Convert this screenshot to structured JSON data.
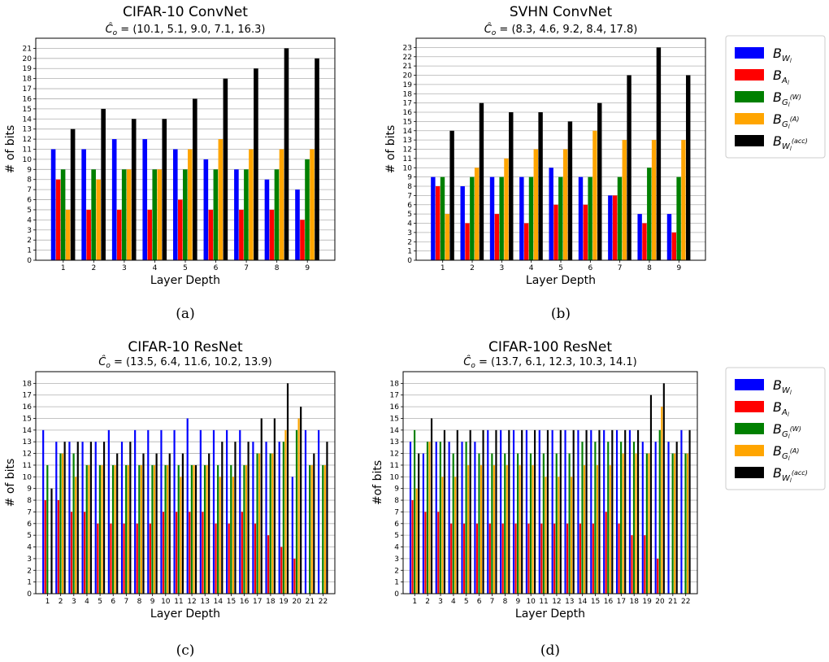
{
  "colors": {
    "bw": "#0000ff",
    "ba": "#ff0000",
    "bgw": "#008000",
    "bga": "#ffa500",
    "bwacc": "#000000",
    "grid": "#b0b0b0"
  },
  "legend": {
    "entries": [
      {
        "key": "bw",
        "base": "B",
        "sub": "W",
        "subsub": "l",
        "sup": ""
      },
      {
        "key": "ba",
        "base": "B",
        "sub": "A",
        "subsub": "l",
        "sup": ""
      },
      {
        "key": "bgw",
        "base": "B",
        "sub": "G",
        "subsub": "l",
        "sup": "(W)"
      },
      {
        "key": "bga",
        "base": "B",
        "sub": "G",
        "subsub": "l",
        "sup": "(A)"
      },
      {
        "key": "bwacc",
        "base": "B",
        "sub": "W",
        "subsub": "l",
        "sup": "(acc)"
      }
    ]
  },
  "chart_data": [
    {
      "type": "bar",
      "title": "CIFAR-10 ConvNet",
      "subtitle": "(10.1, 5.1, 9.0, 7.1, 16.3)",
      "xlabel": "Layer Depth",
      "ylabel": "# of bits",
      "caption": "(a)",
      "ylim": [
        0,
        22
      ],
      "ytick_max": 21,
      "grid": true,
      "categories": [
        "1",
        "2",
        "3",
        "4",
        "5",
        "6",
        "7",
        "8",
        "9"
      ],
      "series": [
        {
          "key": "bw",
          "values": [
            11,
            11,
            12,
            12,
            11,
            10,
            9,
            8,
            7
          ]
        },
        {
          "key": "ba",
          "values": [
            8,
            5,
            5,
            5,
            6,
            5,
            5,
            5,
            4
          ]
        },
        {
          "key": "bgw",
          "values": [
            9,
            9,
            9,
            9,
            9,
            9,
            9,
            9,
            10
          ]
        },
        {
          "key": "bga",
          "values": [
            5,
            8,
            9,
            9,
            11,
            12,
            11,
            11,
            11
          ]
        },
        {
          "key": "bwacc",
          "values": [
            13,
            15,
            14,
            14,
            16,
            18,
            19,
            21,
            20
          ]
        }
      ]
    },
    {
      "type": "bar",
      "title": "SVHN ConvNet",
      "subtitle": "(8.3, 4.6, 9.2, 8.4, 17.8)",
      "xlabel": "Layer Depth",
      "ylabel": "# of bits",
      "caption": "(b)",
      "ylim": [
        0,
        24
      ],
      "ytick_max": 23,
      "grid": true,
      "categories": [
        "1",
        "2",
        "3",
        "4",
        "5",
        "6",
        "7",
        "8",
        "9"
      ],
      "series": [
        {
          "key": "bw",
          "values": [
            9,
            8,
            9,
            9,
            10,
            9,
            7,
            5,
            5
          ]
        },
        {
          "key": "ba",
          "values": [
            8,
            4,
            5,
            4,
            6,
            6,
            7,
            4,
            3
          ]
        },
        {
          "key": "bgw",
          "values": [
            9,
            9,
            9,
            9,
            9,
            9,
            9,
            10,
            9
          ]
        },
        {
          "key": "bga",
          "values": [
            5,
            10,
            11,
            12,
            12,
            14,
            13,
            13,
            13
          ]
        },
        {
          "key": "bwacc",
          "values": [
            14,
            17,
            16,
            16,
            15,
            17,
            20,
            23,
            20
          ]
        }
      ]
    },
    {
      "type": "bar",
      "title": "CIFAR-10 ResNet",
      "subtitle": "(13.5, 6.4, 11.6, 10.2, 13.9)",
      "xlabel": "Layer Depth",
      "ylabel": "# of bits",
      "caption": "(c)",
      "ylim": [
        0,
        19
      ],
      "ytick_max": 18,
      "grid": true,
      "categories": [
        "1",
        "2",
        "3",
        "4",
        "5",
        "6",
        "7",
        "8",
        "9",
        "10",
        "11",
        "12",
        "13",
        "14",
        "15",
        "16",
        "17",
        "18",
        "19",
        "20",
        "21",
        "22"
      ],
      "series": [
        {
          "key": "bw",
          "values": [
            14,
            13,
            13,
            13,
            13,
            14,
            13,
            14,
            14,
            14,
            14,
            15,
            14,
            14,
            14,
            14,
            13,
            13,
            13,
            10,
            14,
            14
          ]
        },
        {
          "key": "ba",
          "values": [
            8,
            8,
            7,
            7,
            6,
            6,
            6,
            6,
            6,
            7,
            7,
            7,
            7,
            6,
            6,
            7,
            6,
            5,
            4,
            3,
            0,
            0
          ]
        },
        {
          "key": "bgw",
          "values": [
            11,
            12,
            12,
            11,
            11,
            11,
            11,
            11,
            11,
            11,
            11,
            11,
            11,
            11,
            11,
            11,
            12,
            12,
            13,
            14,
            11,
            11
          ]
        },
        {
          "key": "bga",
          "values": [
            0,
            12,
            10,
            11,
            11,
            11,
            11,
            11,
            11,
            11,
            10,
            11,
            11,
            10,
            10,
            11,
            12,
            12,
            14,
            15,
            11,
            11
          ]
        },
        {
          "key": "bwacc",
          "values": [
            9,
            13,
            13,
            13,
            13,
            12,
            13,
            12,
            12,
            12,
            12,
            11,
            12,
            13,
            13,
            13,
            15,
            15,
            18,
            16,
            12,
            13
          ]
        }
      ]
    },
    {
      "type": "bar",
      "title": "CIFAR-100 ResNet",
      "subtitle": "(13.7, 6.1, 12.3, 10.3, 14.1)",
      "xlabel": "Layer Depth",
      "ylabel": "#of bits",
      "caption": "(d)",
      "ylim": [
        0,
        19
      ],
      "ytick_max": 18,
      "grid": true,
      "categories": [
        "1",
        "2",
        "3",
        "4",
        "5",
        "6",
        "7",
        "8",
        "9",
        "10",
        "11",
        "12",
        "13",
        "14",
        "15",
        "16",
        "17",
        "18",
        "19",
        "20",
        "21",
        "22"
      ],
      "series": [
        {
          "key": "bw",
          "values": [
            13,
            12,
            13,
            13,
            13,
            13,
            14,
            14,
            14,
            14,
            14,
            14,
            14,
            14,
            14,
            14,
            14,
            14,
            13,
            13,
            13,
            14
          ]
        },
        {
          "key": "ba",
          "values": [
            8,
            7,
            7,
            6,
            6,
            6,
            6,
            6,
            6,
            6,
            6,
            6,
            6,
            6,
            6,
            7,
            6,
            5,
            5,
            3,
            0,
            0
          ]
        },
        {
          "key": "bgw",
          "values": [
            14,
            13,
            13,
            12,
            13,
            12,
            12,
            12,
            12,
            12,
            12,
            12,
            12,
            13,
            13,
            13,
            13,
            13,
            12,
            14,
            12,
            12
          ]
        },
        {
          "key": "bga",
          "values": [
            9,
            13,
            10,
            10,
            11,
            11,
            11,
            11,
            11,
            11,
            10,
            10,
            10,
            11,
            11,
            11,
            12,
            12,
            12,
            16,
            12,
            12
          ]
        },
        {
          "key": "bwacc",
          "values": [
            12,
            15,
            14,
            14,
            14,
            14,
            14,
            14,
            14,
            14,
            14,
            14,
            14,
            14,
            14,
            14,
            14,
            14,
            17,
            18,
            13,
            14
          ]
        }
      ]
    }
  ]
}
